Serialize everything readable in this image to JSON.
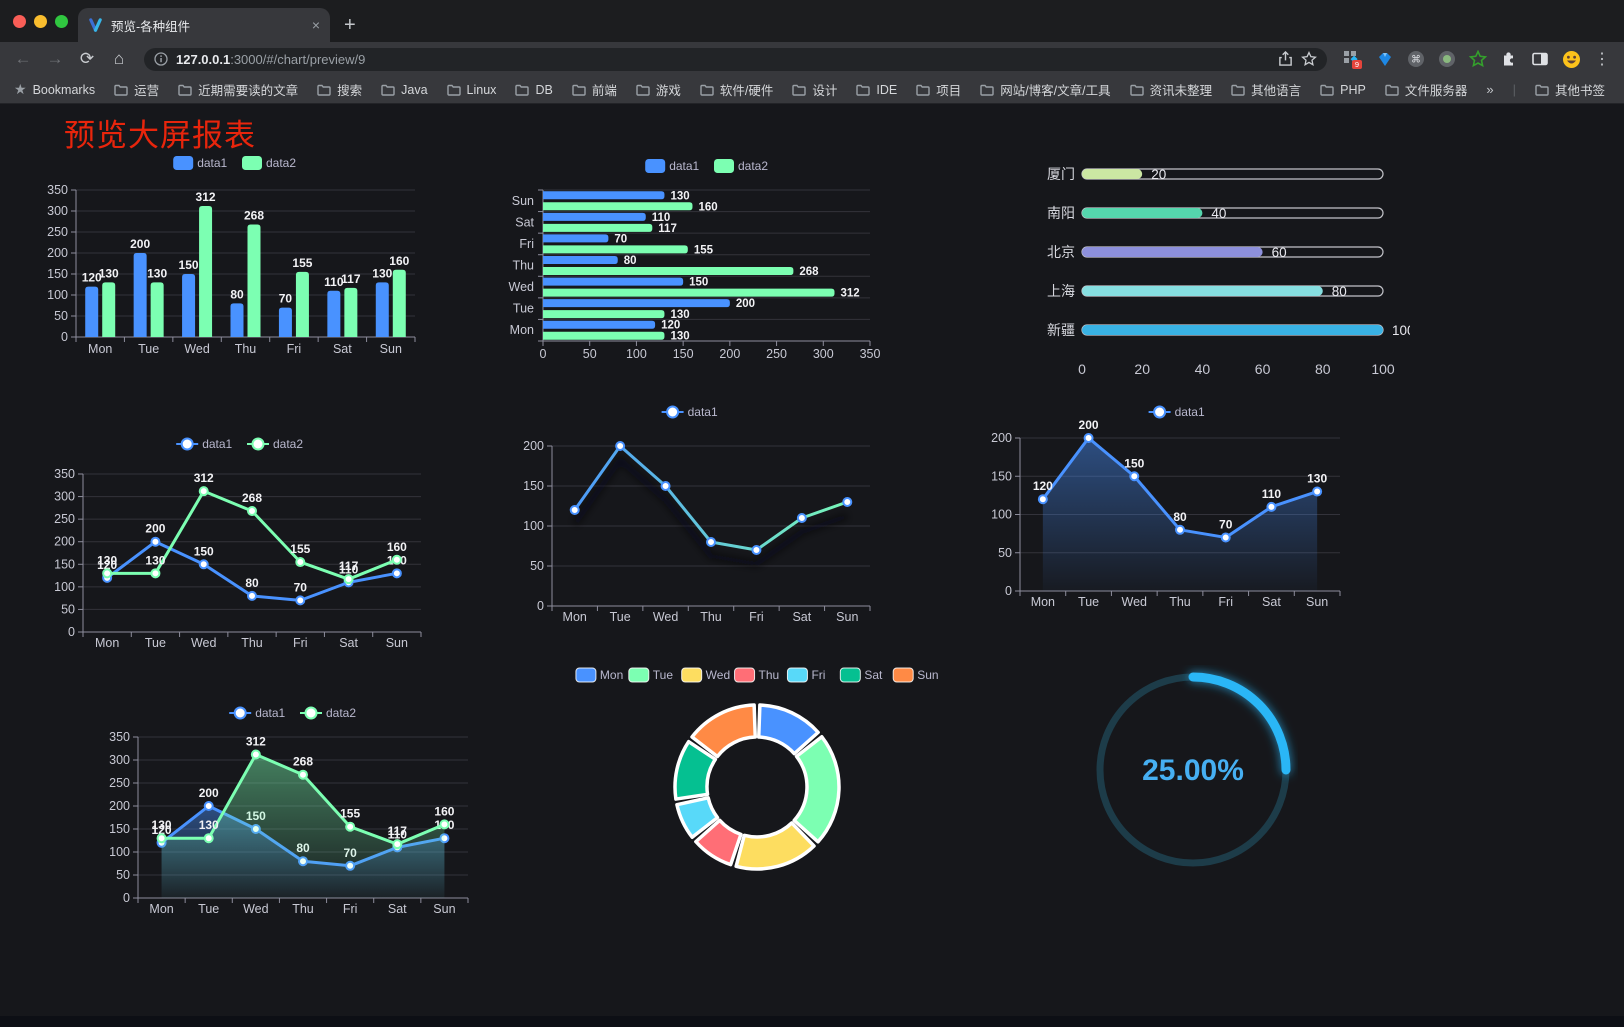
{
  "browser": {
    "traffic_lights": {
      "close": "#f95e57",
      "minimize": "#f9bd2e",
      "zoom": "#30c740"
    },
    "tab": {
      "title": "预览-各种组件",
      "close": "×",
      "new_tab": "+"
    },
    "toolbar": {
      "url_host": "127.0.0.1",
      "url_rest": ":3000/#/chart/preview/9",
      "extension_badge": "9"
    },
    "bookmarks_bar": {
      "bookmarks_label": "Bookmarks",
      "folders": [
        "运营",
        "近期需要读的文章",
        "搜索",
        "Java",
        "Linux",
        "DB",
        "前端",
        "游戏",
        "软件/硬件",
        "设计",
        "IDE",
        "项目",
        "网站/博客/文章/工具",
        "资讯未整理",
        "其他语言",
        "PHP",
        "文件服务器"
      ],
      "overflow": "»",
      "other_bookmarks": "其他书签"
    }
  },
  "page": {
    "title": "预览大屏报表",
    "title_color": "#e8250c",
    "background": "#16171b"
  },
  "chart_data": [
    {
      "id": "grouped-bar",
      "type": "bar",
      "categories": [
        "Mon",
        "Tue",
        "Wed",
        "Thu",
        "Fri",
        "Sat",
        "Sun"
      ],
      "series": [
        {
          "name": "data1",
          "color": "#4992ff",
          "values": [
            120,
            200,
            150,
            80,
            70,
            110,
            130
          ]
        },
        {
          "name": "data2",
          "color": "#7cffb2",
          "values": [
            130,
            130,
            312,
            268,
            155,
            117,
            160
          ]
        }
      ],
      "ylim": [
        0,
        350
      ],
      "ytick": 50,
      "legend_position": "top",
      "grid": true
    },
    {
      "id": "horizontal-grouped-bar",
      "type": "bar",
      "orientation": "horizontal",
      "categories": [
        "Mon",
        "Tue",
        "Wed",
        "Thu",
        "Fri",
        "Sat",
        "Sun"
      ],
      "series": [
        {
          "name": "data1",
          "color": "#4992ff",
          "values": [
            120,
            200,
            150,
            80,
            70,
            110,
            130
          ]
        },
        {
          "name": "data2",
          "color": "#7cffb2",
          "values": [
            130,
            130,
            312,
            268,
            155,
            117,
            160
          ]
        }
      ],
      "xlim": [
        0,
        350
      ],
      "xtick": 50,
      "legend_position": "top",
      "grid": true
    },
    {
      "id": "city-progress-bars",
      "type": "bar",
      "orientation": "horizontal",
      "categories": [
        "厦门",
        "南阳",
        "北京",
        "上海",
        "新疆"
      ],
      "values": [
        20,
        40,
        60,
        80,
        100
      ],
      "colors": [
        "#cbe7a3",
        "#55d6ad",
        "#8d90dc",
        "#86dfe1",
        "#39b2e4"
      ],
      "xlim": [
        0,
        100
      ],
      "xtick": 20
    },
    {
      "id": "two-series-line",
      "type": "line",
      "categories": [
        "Mon",
        "Tue",
        "Wed",
        "Thu",
        "Fri",
        "Sat",
        "Sun"
      ],
      "series": [
        {
          "name": "data1",
          "color": "#4992ff",
          "values": [
            120,
            200,
            150,
            80,
            70,
            110,
            130
          ]
        },
        {
          "name": "data2",
          "color": "#7cffb2",
          "values": [
            130,
            130,
            312,
            268,
            155,
            117,
            160
          ]
        }
      ],
      "ylim": [
        0,
        350
      ],
      "ytick": 50,
      "legend_position": "top",
      "grid": true
    },
    {
      "id": "gradient-line",
      "type": "line",
      "categories": [
        "Mon",
        "Tue",
        "Wed",
        "Thu",
        "Fri",
        "Sat",
        "Sun"
      ],
      "series": [
        {
          "name": "data1",
          "values": [
            120,
            200,
            150,
            80,
            70,
            110,
            130
          ],
          "gradient": [
            "#4992ff",
            "#7cffb2"
          ],
          "marker_color": "#4992ff"
        }
      ],
      "ylim": [
        0,
        200
      ],
      "ytick": 50,
      "legend_position": "top",
      "grid": true
    },
    {
      "id": "single-series-area",
      "type": "area",
      "categories": [
        "Mon",
        "Tue",
        "Wed",
        "Thu",
        "Fri",
        "Sat",
        "Sun"
      ],
      "series": [
        {
          "name": "data1",
          "color": "#4992ff",
          "values": [
            120,
            200,
            150,
            80,
            70,
            110,
            130
          ]
        }
      ],
      "ylim": [
        0,
        200
      ],
      "ytick": 50,
      "legend_position": "top",
      "grid": true
    },
    {
      "id": "two-series-area",
      "type": "area",
      "categories": [
        "Mon",
        "Tue",
        "Wed",
        "Thu",
        "Fri",
        "Sat",
        "Sun"
      ],
      "series": [
        {
          "name": "data1",
          "color": "#4992ff",
          "values": [
            120,
            200,
            150,
            80,
            70,
            110,
            130
          ]
        },
        {
          "name": "data2",
          "color": "#7cffb2",
          "values": [
            130,
            130,
            312,
            268,
            155,
            117,
            160
          ]
        }
      ],
      "ylim": [
        0,
        350
      ],
      "ytick": 50,
      "legend_position": "top",
      "grid": true
    },
    {
      "id": "donut-pie",
      "type": "pie",
      "labels": [
        "Mon",
        "Tue",
        "Wed",
        "Thu",
        "Fri",
        "Sat",
        "Sun"
      ],
      "values": [
        120,
        200,
        150,
        80,
        70,
        110,
        130
      ],
      "colors": [
        "#4992ff",
        "#7cffb2",
        "#fddd60",
        "#ff6e76",
        "#58d9f9",
        "#05c091",
        "#ff8a45"
      ],
      "inner_radius_pct": 60,
      "legend_position": "top"
    },
    {
      "id": "progress-ring",
      "type": "gauge",
      "value_percent": 25,
      "label": "25.00%",
      "arc_color": "#2ab6f6",
      "track_color": "#1d3c49",
      "text_color": "#46aff2"
    }
  ]
}
